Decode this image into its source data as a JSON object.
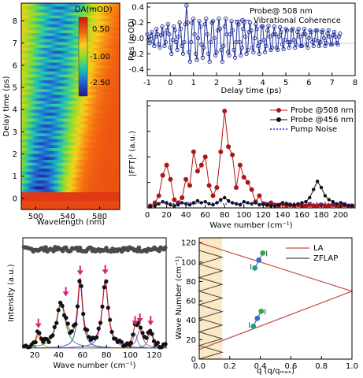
{
  "figure": {
    "panel_a": {
      "ylabel": "Delay time (ps)",
      "xlabel": "Wavelength (nm)",
      "xticks": [
        "500",
        "540",
        "580"
      ],
      "yticks": [
        "0",
        "1",
        "2",
        "3",
        "4",
        "5",
        "6",
        "7",
        "8"
      ],
      "colorbar": {
        "title": "DA(mOD)",
        "ticks": [
          "0.50",
          "-1.00",
          "-2.50"
        ]
      }
    },
    "panel_b": {
      "legend_title": "Probe@ 508 nm",
      "legend_series": "Vibrational Coherence",
      "ylabel": "Res (mOD)",
      "xlabel": "Delay time (ps)",
      "xticks": [
        "-1",
        "0",
        "1",
        "2",
        "3",
        "4",
        "5",
        "6",
        "7",
        "8"
      ],
      "yticks": [
        "0.4",
        "0.2",
        "0.0",
        "-0.2",
        "-0.4"
      ]
    },
    "panel_c": {
      "ylabel": "|FFT|² (a.u.)",
      "xlabel": "Wave number (cm⁻¹)",
      "xticks": [
        "0",
        "20",
        "40",
        "60",
        "80",
        "100",
        "120",
        "140",
        "160",
        "180",
        "200"
      ],
      "legend": [
        "Probe @508 nm",
        "Probe @456 nm",
        "Pump Noise"
      ]
    },
    "panel_d": {
      "ylabel": "Intensity (a.u.)",
      "xlabel": "Wave number (cm⁻¹)",
      "xticks": [
        "20",
        "40",
        "60",
        "80",
        "100",
        "120"
      ]
    },
    "panel_e": {
      "ylabel": "Wave Number (cm⁻¹)",
      "xlabel": "q (q/qₘₐₓ)",
      "xticks": [
        "0.0",
        "0.2",
        "0.4",
        "0.6",
        "0.8",
        "1.0"
      ],
      "yticks": [
        "0",
        "20",
        "40",
        "60",
        "80",
        "100",
        "120"
      ],
      "legend": [
        "LA",
        "ZFLAP"
      ]
    }
  },
  "colors": {
    "blue_series": "#1f2f9a",
    "red_series": "#b01515",
    "black_series": "#111111",
    "pump_noise": "#2222dd",
    "la_line": "#c0504d",
    "zflap_line": "#444444",
    "shade": "#fbe9c4",
    "arrow": "#d6246e"
  },
  "chart_data": [
    {
      "panel": "a",
      "type": "heatmap",
      "xlabel": "Wavelength (nm)",
      "ylabel": "Delay time (ps)",
      "xlim": [
        482,
        605
      ],
      "ylim": [
        -0.5,
        8.8
      ],
      "colorbar": {
        "title": "DA(mOD)",
        "range": [
          -3.2,
          0.9
        ],
        "ticks": [
          0.5,
          -1.0,
          -2.5
        ]
      },
      "description_values": {
        "bleach_min_wavelength": 505,
        "bleach_min_value": -2.8,
        "background_value": 0.3
      }
    },
    {
      "panel": "b",
      "type": "line",
      "xlabel": "Delay time (ps)",
      "ylabel": "Res (mOD)",
      "xlim": [
        -1,
        8
      ],
      "ylim": [
        -0.48,
        0.45
      ],
      "series": [
        {
          "name": "Vibrational Coherence",
          "x_start": -1.0,
          "x_step": 0.05,
          "values": [
            0.05,
            -0.02,
            -0.06,
            0.03,
            0.08,
            -0.04,
            -0.1,
            0.02,
            0.12,
            0.05,
            -0.08,
            -0.12,
            0.04,
            0.15,
            0.06,
            -0.1,
            -0.05,
            0.1,
            0.18,
            0.05,
            -0.12,
            -0.2,
            -0.02,
            0.15,
            0.1,
            -0.05,
            -0.15,
            0.02,
            0.2,
            0.12,
            -0.1,
            -0.2,
            -0.05,
            0.18,
            0.42,
            0.2,
            -0.18,
            -0.3,
            -0.05,
            0.2,
            0.25,
            0.05,
            -0.2,
            -0.28,
            0.0,
            0.22,
            0.15,
            -0.08,
            -0.25,
            -0.12,
            0.18,
            0.25,
            0.05,
            -0.2,
            -0.3,
            -0.05,
            0.2,
            0.22,
            0.0,
            -0.22,
            -0.18,
            0.1,
            0.25,
            0.12,
            -0.15,
            -0.3,
            -0.1,
            0.15,
            0.25,
            0.05,
            -0.18,
            -0.22,
            0.05,
            0.22,
            0.1,
            -0.15,
            -0.25,
            -0.05,
            0.2,
            0.18,
            -0.05,
            -0.22,
            -0.12,
            0.12,
            0.2,
            0.02,
            -0.2,
            -0.15,
            0.08,
            0.2,
            0.1,
            -0.12,
            -0.18,
            0.0,
            0.18,
            0.12,
            -0.1,
            -0.2,
            -0.05,
            0.15,
            0.15,
            -0.02,
            -0.18,
            -0.1,
            0.1,
            0.16,
            0.02,
            -0.15,
            -0.12,
            0.05,
            0.15,
            0.05,
            -0.12,
            -0.15,
            0.02,
            0.14,
            0.08,
            -0.08,
            -0.14,
            -0.02,
            0.12,
            0.1,
            -0.05,
            -0.12,
            -0.05,
            0.1,
            0.12,
            -0.02,
            -0.12,
            -0.08,
            0.08,
            0.12,
            0.02,
            -0.1,
            -0.1,
            0.05,
            0.12,
            0.05,
            -0.08,
            -0.12,
            0.0,
            0.1,
            0.08,
            -0.05,
            -0.1,
            -0.02,
            0.1,
            0.1,
            -0.04,
            -0.1,
            -0.05,
            0.08,
            0.1,
            0.0,
            -0.1,
            -0.06,
            0.06,
            0.1,
            0.02,
            -0.08,
            -0.08,
            0.04,
            0.08,
            0.02,
            -0.06,
            -0.08,
            0.02,
            0.06
          ]
        }
      ]
    },
    {
      "panel": "c",
      "type": "line",
      "xlabel": "Wave number (cm⁻¹)",
      "ylabel": "|FFT|² (a.u.)",
      "xlim": [
        0,
        215
      ],
      "ylim": [
        0,
        1.05
      ],
      "series": [
        {
          "name": "Probe @508 nm",
          "x": [
            3,
            8,
            12,
            16,
            20,
            24,
            28,
            32,
            36,
            40,
            44,
            48,
            52,
            56,
            60,
            64,
            68,
            72,
            76,
            80,
            84,
            88,
            92,
            96,
            100,
            104,
            108,
            112,
            116,
            120,
            124,
            128,
            132,
            136,
            140,
            144,
            148,
            152,
            156,
            160,
            164,
            168,
            172,
            176,
            180,
            184,
            188,
            192,
            196,
            200,
            204,
            208,
            212
          ],
          "y": [
            0.02,
            0.05,
            0.12,
            0.32,
            0.42,
            0.28,
            0.08,
            0.05,
            0.1,
            0.28,
            0.22,
            0.55,
            0.36,
            0.42,
            0.5,
            0.22,
            0.12,
            0.2,
            0.55,
            0.95,
            0.6,
            0.52,
            0.2,
            0.42,
            0.3,
            0.25,
            0.18,
            0.06,
            0.12,
            0.04,
            0.03,
            0.05,
            0.03,
            0.02,
            0.04,
            0.02,
            0.03,
            0.02,
            0.03,
            0.02,
            0.02,
            0.03,
            0.02,
            0.02,
            0.03,
            0.02,
            0.02,
            0.03,
            0.02,
            0.02,
            0.03,
            0.02,
            0.02
          ]
        },
        {
          "name": "Probe @456 nm",
          "x": [
            3,
            8,
            12,
            16,
            20,
            24,
            28,
            32,
            36,
            40,
            44,
            48,
            52,
            56,
            60,
            64,
            68,
            72,
            76,
            80,
            84,
            88,
            92,
            96,
            100,
            104,
            108,
            112,
            116,
            120,
            124,
            128,
            132,
            136,
            140,
            144,
            148,
            152,
            156,
            160,
            164,
            168,
            172,
            176,
            180,
            184,
            188,
            192,
            196,
            200,
            204,
            208,
            212
          ],
          "y": [
            0.01,
            0.02,
            0.04,
            0.06,
            0.05,
            0.03,
            0.02,
            0.03,
            0.05,
            0.04,
            0.03,
            0.05,
            0.07,
            0.05,
            0.06,
            0.04,
            0.03,
            0.05,
            0.08,
            0.1,
            0.07,
            0.05,
            0.04,
            0.03,
            0.06,
            0.05,
            0.04,
            0.05,
            0.03,
            0.04,
            0.03,
            0.02,
            0.02,
            0.03,
            0.05,
            0.04,
            0.03,
            0.03,
            0.04,
            0.05,
            0.06,
            0.1,
            0.18,
            0.26,
            0.2,
            0.12,
            0.08,
            0.06,
            0.04,
            0.05,
            0.03,
            0.02,
            0.02
          ]
        },
        {
          "name": "Pump Noise",
          "x": [
            3,
            8,
            12,
            16,
            20,
            24,
            28,
            32,
            36,
            40,
            44,
            48,
            52,
            56,
            60,
            64,
            68,
            72,
            76,
            80,
            84,
            88,
            92,
            96,
            100,
            104,
            108,
            112,
            116,
            120,
            124,
            128,
            132,
            136,
            140,
            144,
            148,
            152,
            156,
            160,
            164,
            168,
            172,
            176,
            180,
            184,
            188,
            192,
            196,
            200,
            204,
            208,
            212
          ],
          "y": [
            0.03,
            0.05,
            0.04,
            0.06,
            0.03,
            0.05,
            0.04,
            0.03,
            0.05,
            0.04,
            0.06,
            0.03,
            0.05,
            0.04,
            0.06,
            0.03,
            0.05,
            0.04,
            0.06,
            0.03,
            0.05,
            0.06,
            0.04,
            0.05,
            0.03,
            0.06,
            0.04,
            0.05,
            0.03,
            0.05,
            0.06,
            0.04,
            0.03,
            0.05,
            0.04,
            0.06,
            0.03,
            0.05,
            0.04,
            0.05,
            0.03,
            0.06,
            0.04,
            0.05,
            0.03,
            0.05,
            0.04,
            0.03,
            0.05,
            0.04,
            0.06,
            0.03,
            0.04
          ]
        }
      ]
    },
    {
      "panel": "d",
      "type": "scatter",
      "xlabel": "Wave number (cm⁻¹)",
      "ylabel": "Intensity (a.u.)",
      "xlim": [
        10,
        130
      ],
      "ylim": [
        0,
        1.25
      ],
      "peaks_cm1": [
        23,
        42,
        58,
        79,
        104,
        108,
        117
      ],
      "peak_heights": [
        0.14,
        0.5,
        0.74,
        0.75,
        0.17,
        0.2,
        0.17
      ],
      "peak_widths": [
        2.5,
        4.5,
        2.5,
        3.0,
        2.0,
        3.0,
        2.5
      ],
      "arrows_at": [
        23,
        46,
        58,
        79,
        104,
        108,
        117
      ],
      "baseline_level": 1.12
    },
    {
      "panel": "e",
      "type": "line",
      "xlabel": "q (q/qₘₐₓ)",
      "ylabel": "Wave Number (cm⁻¹)",
      "xlim": [
        0,
        1.0
      ],
      "ylim": [
        0,
        125
      ],
      "shaded_region": [
        0,
        0.15
      ],
      "series": [
        {
          "name": "LA",
          "x": [
            0,
            1.0,
            0
          ],
          "y": [
            120,
            70,
            10
          ]
        },
        {
          "name": "ZFLAP",
          "x": [
            0,
            0.15,
            0,
            0.15,
            0,
            0.15,
            0,
            0.15,
            0,
            0.15,
            0,
            0.15,
            0,
            0.15,
            0,
            0.15,
            0
          ],
          "y": [
            0,
            7,
            14,
            21,
            28,
            35,
            42,
            49,
            56,
            63,
            70,
            77,
            84,
            91,
            98,
            105,
            112
          ]
        }
      ]
    }
  ]
}
